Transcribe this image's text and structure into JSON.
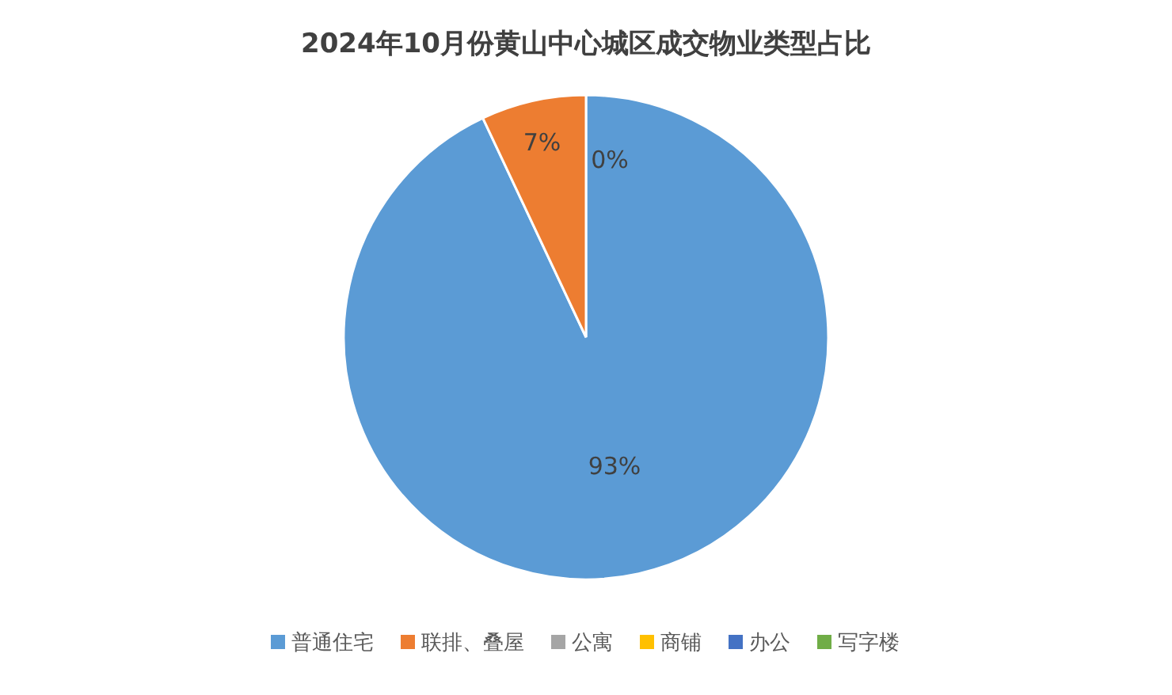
{
  "chart_data": {
    "type": "pie",
    "title": "2024年10月份黄山中心城区成交物业类型占比",
    "categories": [
      "普通住宅",
      "联排、叠屋",
      "公寓",
      "商铺",
      "办公",
      "写字楼"
    ],
    "values": [
      93,
      7,
      0,
      0,
      0,
      0
    ],
    "colors": [
      "#5b9bd5",
      "#ed7d31",
      "#a5a5a5",
      "#ffc000",
      "#4472c4",
      "#70ad47"
    ],
    "value_labels": [
      "93%",
      "7%",
      "0%",
      null,
      null,
      null
    ],
    "legend": "bottom"
  }
}
